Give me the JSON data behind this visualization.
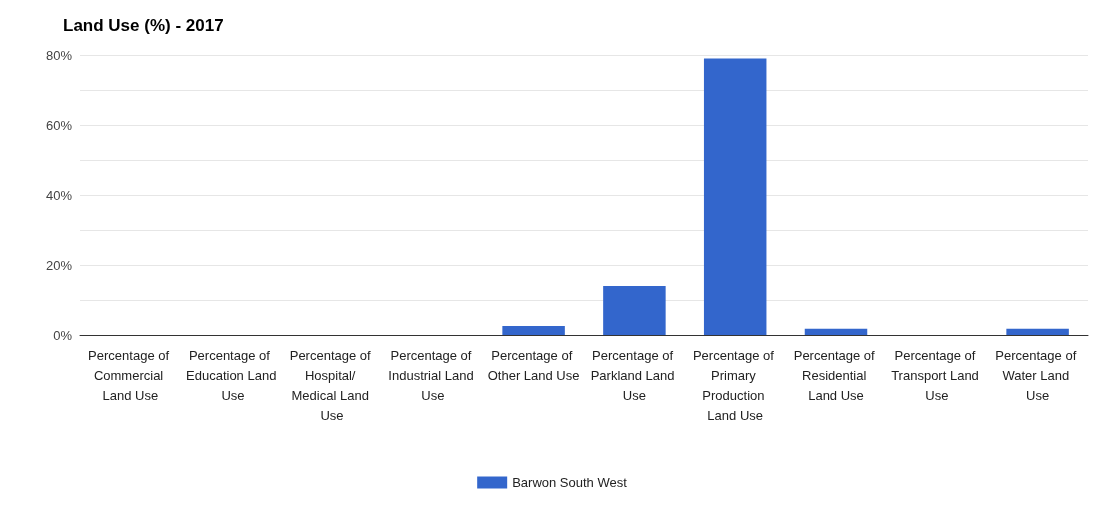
{
  "chart_data": {
    "type": "bar",
    "title": "Land Use (%) - 2017",
    "categories": [
      "Percentage of Commercial Land Use",
      "Percentage of Education Land Use",
      "Percentage of Hospital/ Medical Land Use",
      "Percentage of Industrial Land Use",
      "Percentage of Other Land Use",
      "Percentage of Parkland Land Use",
      "Percentage of Primary Production Land Use",
      "Percentage of Residential Land Use",
      "Percentage of Transport Land Use",
      "Percentage of Water Land Use"
    ],
    "series": [
      {
        "name": "Barwon South West",
        "color": "#3366cc",
        "values": [
          0,
          0,
          0,
          0,
          2.6,
          14,
          79,
          1.8,
          0,
          1.8
        ]
      }
    ],
    "ylim": [
      0,
      80
    ],
    "yticks": [
      {
        "value": 0,
        "label": "0%"
      },
      {
        "value": 10,
        "label": null
      },
      {
        "value": 20,
        "label": "20%"
      },
      {
        "value": 30,
        "label": null
      },
      {
        "value": 40,
        "label": "40%"
      },
      {
        "value": 50,
        "label": null
      },
      {
        "value": 60,
        "label": "60%"
      },
      {
        "value": 70,
        "label": null
      },
      {
        "value": 80,
        "label": "80%"
      }
    ],
    "grid": true,
    "legend": "bottom"
  }
}
